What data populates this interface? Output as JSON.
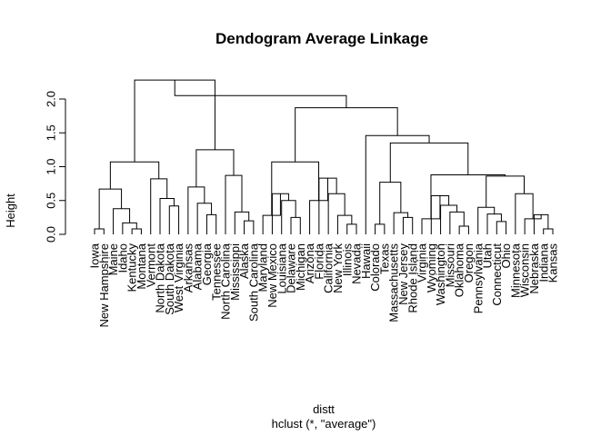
{
  "chart_data": {
    "type": "dendrogram",
    "title": "Dendogram Average Linkage",
    "ylabel": "Height",
    "xlabel": "distt",
    "sub": "hclust (*, \"average\")",
    "ylim": [
      0,
      2.3
    ],
    "yticks": [
      "0.0",
      "0.5",
      "1.0",
      "1.5",
      "2.0"
    ],
    "leaves": [
      "Iowa",
      "New Hampshire",
      "Maine",
      "Idaho",
      "Kentucky",
      "Montana",
      "Vermont",
      "North Dakota",
      "South Dakota",
      "West Virginia",
      "Arkansas",
      "Alabama",
      "Georgia",
      "Tennessee",
      "North Carolina",
      "Mississippi",
      "Alaska",
      "South Carolina",
      "Maryland",
      "New Mexico",
      "Louisiana",
      "Delaware",
      "Michigan",
      "Arizona",
      "Florida",
      "California",
      "New York",
      "Illinois",
      "Nevada",
      "Hawaii",
      "Colorado",
      "Texas",
      "Massachusetts",
      "New Jersey",
      "Rhode Island",
      "Virginia",
      "Wyoming",
      "Washington",
      "Missouri",
      "Oklahoma",
      "Oregon",
      "Pennsylvania",
      "Utah",
      "Connecticut",
      "Ohio",
      "Minnesota",
      "Wisconsin",
      "Nebraska",
      "Indiana",
      "Kansas"
    ],
    "merges": [
      {
        "a": "L0",
        "b": "L1",
        "h": 0.08
      },
      {
        "a": "L4",
        "b": "L5",
        "h": 0.08
      },
      {
        "a": "L3",
        "b": "M1",
        "h": 0.17
      },
      {
        "a": "L2",
        "b": "M2",
        "h": 0.38
      },
      {
        "a": "M0",
        "b": "M3",
        "h": 0.67
      },
      {
        "a": "L8",
        "b": "L9",
        "h": 0.42
      },
      {
        "a": "L7",
        "b": "M5",
        "h": 0.53
      },
      {
        "a": "L6",
        "b": "M6",
        "h": 0.82
      },
      {
        "a": "M4",
        "b": "M7",
        "h": 1.07
      },
      {
        "a": "L12",
        "b": "L13",
        "h": 0.29
      },
      {
        "a": "L11",
        "b": "M9",
        "h": 0.46
      },
      {
        "a": "L10",
        "b": "M10",
        "h": 0.7
      },
      {
        "a": "L16",
        "b": "L17",
        "h": 0.2
      },
      {
        "a": "L15",
        "b": "M12",
        "h": 0.33
      },
      {
        "a": "L14",
        "b": "M13",
        "h": 0.87
      },
      {
        "a": "M11",
        "b": "M14",
        "h": 1.25
      },
      {
        "a": "M8",
        "b": "M15",
        "h": 2.28
      },
      {
        "a": "L21",
        "b": "L22",
        "h": 0.25
      },
      {
        "a": "L20",
        "b": "M17",
        "h": 0.5
      },
      {
        "a": "L19",
        "b": "M18",
        "h": 0.6
      },
      {
        "a": "L18",
        "b": "M19",
        "h": 0.28
      },
      {
        "a": "L27",
        "b": "L28",
        "h": 0.15
      },
      {
        "a": "L26",
        "b": "M21",
        "h": 0.28
      },
      {
        "a": "L25",
        "b": "M22",
        "h": 0.6
      },
      {
        "a": "L24",
        "b": "M23",
        "h": 0.83
      },
      {
        "a": "L23",
        "b": "M24",
        "h": 0.5
      },
      {
        "a": "M20",
        "b": "M25",
        "h": 1.07
      },
      {
        "a": "L30",
        "b": "L31",
        "h": 0.15
      },
      {
        "a": "L33",
        "b": "L34",
        "h": 0.25
      },
      {
        "a": "L32",
        "b": "M28",
        "h": 0.32
      },
      {
        "a": "M27",
        "b": "M29",
        "h": 0.77
      },
      {
        "a": "L39",
        "b": "L40",
        "h": 0.12
      },
      {
        "a": "L38",
        "b": "M31",
        "h": 0.33
      },
      {
        "a": "L37",
        "b": "M32",
        "h": 0.43
      },
      {
        "a": "L36",
        "b": "M33",
        "h": 0.57
      },
      {
        "a": "L35",
        "b": "M34",
        "h": 0.23
      },
      {
        "a": "L43",
        "b": "L44",
        "h": 0.19
      },
      {
        "a": "L42",
        "b": "M36",
        "h": 0.3
      },
      {
        "a": "L41",
        "b": "M37",
        "h": 0.4
      },
      {
        "a": "L48",
        "b": "L49",
        "h": 0.08
      },
      {
        "a": "L47",
        "b": "M39",
        "h": 0.29
      },
      {
        "a": "L46",
        "b": "M40",
        "h": 0.23
      },
      {
        "a": "L45",
        "b": "M41",
        "h": 0.6
      },
      {
        "a": "M38",
        "b": "M42",
        "h": 0.86
      },
      {
        "a": "M35",
        "b": "M43",
        "h": 0.88
      },
      {
        "a": "M30",
        "b": "M44",
        "h": 1.35
      },
      {
        "a": "L29",
        "b": "M45",
        "h": 1.46
      },
      {
        "a": "M26",
        "b": "M46",
        "h": 1.87
      },
      {
        "a": "M47",
        "b": "M16",
        "h": 2.05
      }
    ],
    "grid": false,
    "legend": "none"
  }
}
